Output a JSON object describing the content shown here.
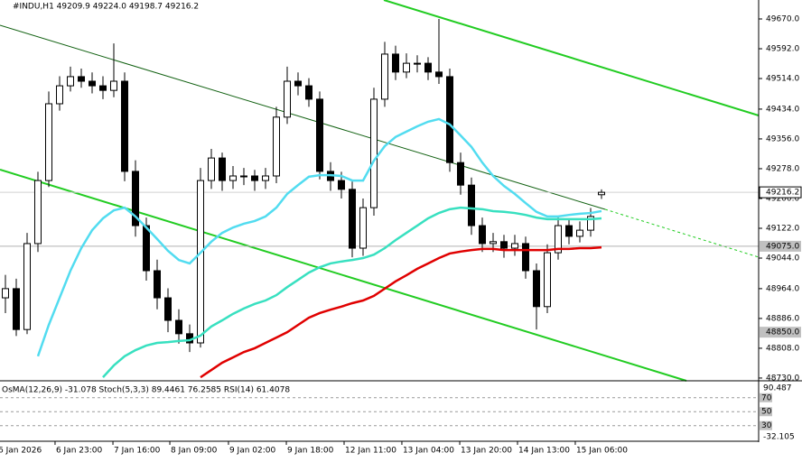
{
  "chart_data": {
    "type": "candlestick",
    "title": "#INDU,H1  49209.9 49224.0 49198.7 49216.2",
    "xlim": [
      -0.5,
      69.5
    ],
    "xticks": [
      {
        "value": -0.75,
        "label": "6 Jan 2026"
      },
      {
        "value": 4.58,
        "label": "6 Jan 23:00"
      },
      {
        "value": 9.92,
        "label": "7 Jan 16:00"
      },
      {
        "value": 15.17,
        "label": "8 Jan 09:00"
      },
      {
        "value": 20.58,
        "label": "9 Jan 02:00"
      },
      {
        "value": 25.92,
        "label": "9 Jan 18:00"
      },
      {
        "value": 31.25,
        "label": "12 Jan 11:00"
      },
      {
        "value": 36.58,
        "label": "13 Jan 04:00"
      },
      {
        "value": 41.92,
        "label": "13 Jan 20:00"
      },
      {
        "value": 47.25,
        "label": "14 Jan 13:00"
      },
      {
        "value": 52.58,
        "label": "15 Jan 06:00"
      }
    ],
    "ylim": [
      48722.8,
      49719.6
    ],
    "yticks": [
      {
        "value": 49670,
        "label": "49670.0"
      },
      {
        "value": 49592,
        "label": "49592.0"
      },
      {
        "value": 49514,
        "label": "49514.0"
      },
      {
        "value": 49434,
        "label": "49434.0"
      },
      {
        "value": 49356,
        "label": "49356.0"
      },
      {
        "value": 49278,
        "label": "49278.0"
      },
      {
        "value": 49200,
        "label": "49200.0"
      },
      {
        "value": 49122,
        "label": "49122.0"
      },
      {
        "value": 49044,
        "label": "49044.0"
      },
      {
        "value": 48964,
        "label": "48964.0"
      },
      {
        "value": 48886,
        "label": "48886.0"
      },
      {
        "value": 48808,
        "label": "48808.0"
      },
      {
        "value": 48730,
        "label": "48730.0"
      }
    ],
    "last_price": 49216.2,
    "levels": [
      {
        "value": 49075,
        "label": "49075.0"
      },
      {
        "value": 48850,
        "label": "48850.0"
      }
    ],
    "candle_color": "#000000",
    "open": [
      48940,
      48964,
      48857,
      49082,
      49247,
      49448,
      49495,
      49519,
      49507,
      49495,
      49483,
      49507,
      49271,
      49129,
      49011,
      48940,
      48881,
      48846,
      48822,
      49247,
      49306,
      49247,
      49259,
      49259,
      49247,
      49259,
      49413,
      49507,
      49495,
      49460,
      49271,
      49247,
      49224,
      49070,
      49176,
      49460,
      49578,
      49531,
      49554,
      49554,
      49531,
      49519,
      49294,
      49235,
      49129,
      49082,
      49087,
      49070,
      49082,
      49011,
      48917,
      49058,
      49129,
      49101,
      49117,
      49209.9
    ],
    "high": [
      49000,
      48990,
      49110,
      49270,
      49480,
      49520,
      49545,
      49540,
      49530,
      49520,
      49606,
      49530,
      49300,
      49150,
      49040,
      48965,
      48910,
      48870,
      49280,
      49330,
      49320,
      49285,
      49280,
      49275,
      49280,
      49440,
      49545,
      49530,
      49515,
      49480,
      49295,
      49270,
      49245,
      49200,
      49490,
      49610,
      49600,
      49580,
      49575,
      49570,
      49670,
      49540,
      49320,
      49255,
      49150,
      49110,
      49105,
      49105,
      49100,
      49030,
      49080,
      49150,
      49145,
      49140,
      49175,
      49224.0
    ],
    "low": [
      48900,
      48840,
      48845,
      49060,
      49230,
      49430,
      49480,
      49490,
      49475,
      49460,
      49465,
      49245,
      49100,
      48985,
      48910,
      48850,
      48820,
      48798,
      48810,
      49225,
      49220,
      49225,
      49235,
      49220,
      49225,
      49240,
      49395,
      49470,
      49440,
      49250,
      49220,
      49200,
      49046,
      49050,
      49155,
      49440,
      49510,
      49515,
      49530,
      49510,
      49500,
      49270,
      49210,
      49105,
      49060,
      49060,
      49045,
      49050,
      48990,
      48857,
      48900,
      49040,
      49080,
      49085,
      49100,
      49198.7
    ],
    "close": [
      48964,
      48857,
      49082,
      49247,
      49448,
      49495,
      49519,
      49507,
      49495,
      49483,
      49507,
      49271,
      49129,
      49011,
      48940,
      48881,
      48846,
      48822,
      49247,
      49306,
      49247,
      49259,
      49259,
      49247,
      49259,
      49413,
      49507,
      49495,
      49460,
      49271,
      49247,
      49224,
      49070,
      49176,
      49460,
      49578,
      49531,
      49554,
      49554,
      49531,
      49519,
      49294,
      49235,
      49129,
      49082,
      49087,
      49070,
      49082,
      49011,
      48917,
      49058,
      49129,
      49101,
      49117,
      49153,
      49216.2
    ],
    "series": [
      {
        "color": "#52dcf0",
        "values": [
          null,
          null,
          null,
          48787,
          48869,
          48940,
          49011,
          49070,
          49117,
          49148,
          49169,
          49176,
          49153,
          49124,
          49094,
          49063,
          49039,
          49030,
          49058,
          49087,
          49110,
          49124,
          49134,
          49141,
          49153,
          49176,
          49212,
          49235,
          49257,
          49261,
          49261,
          49259,
          49247,
          49247,
          49299,
          49337,
          49361,
          49375,
          49389,
          49401,
          49408,
          49394,
          49365,
          49335,
          49294,
          49259,
          49233,
          49212,
          49188,
          49165,
          49153,
          49153,
          49157,
          49160,
          49162,
          49167
        ]
      },
      {
        "color": "#38e0c0",
        "values": [
          null,
          null,
          null,
          null,
          null,
          null,
          null,
          null,
          null,
          48732,
          48763,
          48787,
          48803,
          48815,
          48822,
          48824,
          48827,
          48829,
          48841,
          48865,
          48881,
          48898,
          48912,
          48924,
          48933,
          48947,
          48968,
          48987,
          49006,
          49020,
          49030,
          49035,
          49039,
          49044,
          49053,
          49070,
          49091,
          49110,
          49129,
          49148,
          49162,
          49172,
          49176,
          49174,
          49172,
          49167,
          49165,
          49162,
          49157,
          49150,
          49146,
          49146,
          49146,
          49146,
          49146,
          49148
        ]
      },
      {
        "color": "#e00000",
        "values": [
          null,
          null,
          null,
          null,
          null,
          null,
          null,
          null,
          null,
          null,
          null,
          null,
          null,
          null,
          null,
          null,
          null,
          null,
          48732,
          48751,
          48770,
          48784,
          48798,
          48808,
          48822,
          48836,
          48850,
          48869,
          48888,
          48900,
          48909,
          48917,
          48926,
          48933,
          48945,
          48964,
          48983,
          48999,
          49016,
          49030,
          49044,
          49056,
          49061,
          49065,
          49068,
          49068,
          49065,
          49065,
          49065,
          49065,
          49065,
          49068,
          49068,
          49070,
          49070,
          49072
        ]
      }
    ],
    "indicator": {
      "title": "OsMA(12,26,9) -31.078  Stoch(5,3,3) 89.4461 76.2585  RSI(14) 61.4078",
      "ylim": [
        7.6,
        93
      ],
      "yticks": [
        70,
        50,
        30
      ],
      "top_label": "90.487",
      "bottom_label": "-32.105"
    }
  }
}
